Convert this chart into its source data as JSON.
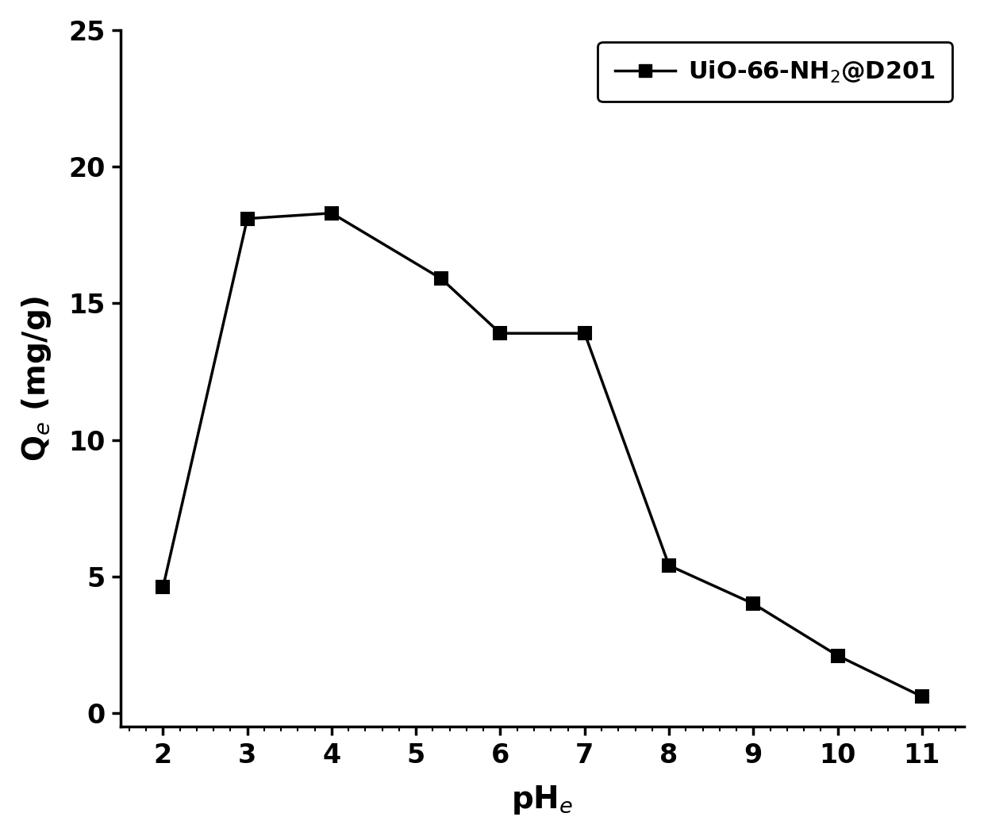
{
  "x": [
    2,
    3,
    4,
    5.3,
    6,
    7,
    8,
    9,
    10,
    11
  ],
  "y": [
    4.6,
    18.1,
    18.3,
    15.9,
    13.9,
    13.9,
    5.4,
    4.0,
    2.1,
    0.6
  ],
  "xlim": [
    1.5,
    11.5
  ],
  "ylim": [
    -0.5,
    25
  ],
  "xticks": [
    2,
    3,
    4,
    5,
    6,
    7,
    8,
    9,
    10,
    11
  ],
  "yticks": [
    0,
    5,
    10,
    15,
    20,
    25
  ],
  "xlabel": "pH$_e$",
  "ylabel": "Q$_e$ (mg/g)",
  "legend_label": "UiO-66-NH$_2$@D201",
  "line_color": "#000000",
  "marker": "s",
  "marker_size": 11,
  "linewidth": 2.5,
  "label_fontsize": 28,
  "tick_fontsize": 24,
  "legend_fontsize": 22,
  "background_color": "#ffffff",
  "spine_linewidth": 2.5
}
